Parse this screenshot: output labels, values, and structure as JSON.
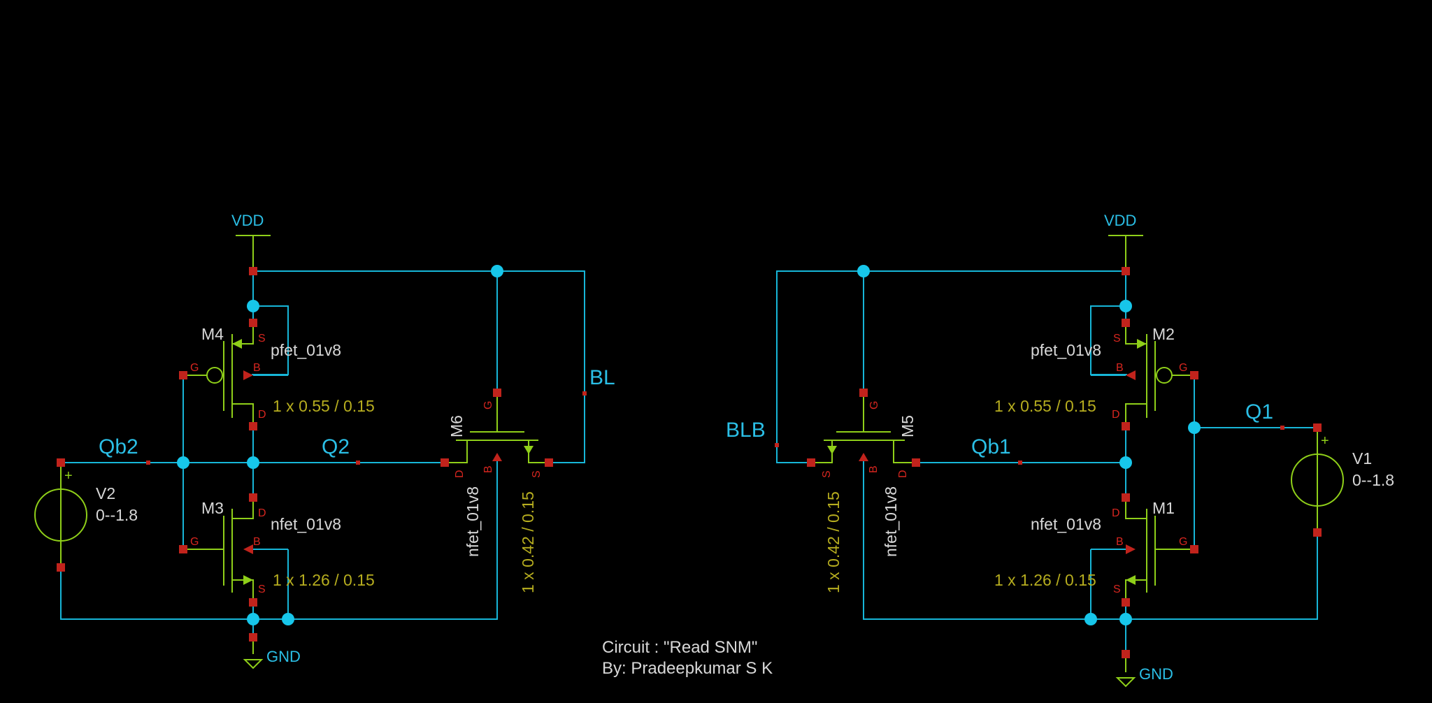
{
  "colors": {
    "background": "#000000",
    "wire": "#17b6d8",
    "component": "#8fcf19",
    "pin": "#c1231c",
    "net_label": "#2bbfe6",
    "instance_label": "#d8d8d8",
    "size_label": "#b6ad1f"
  },
  "net_labels": {
    "vdd_left": "VDD",
    "vdd_right": "VDD",
    "gnd_left": "GND",
    "gnd_right": "GND",
    "qb2": "Qb2",
    "q2": "Q2",
    "bl": "BL",
    "blb": "BLB",
    "qb1": "Qb1",
    "q1": "Q1"
  },
  "components": {
    "m4": {
      "name": "M4",
      "model": "pfet_01v8",
      "size": "1 x 0.55 / 0.15"
    },
    "m3": {
      "name": "M3",
      "model": "nfet_01v8",
      "size": "1 x 1.26 / 0.15"
    },
    "m6": {
      "name": "M6",
      "model": "nfet_01v8",
      "size": "1 x 0.42 / 0.15"
    },
    "m2": {
      "name": "M2",
      "model": "pfet_01v8",
      "size": "1 x 0.55 / 0.15"
    },
    "m1": {
      "name": "M1",
      "model": "nfet_01v8",
      "size": "1 x 1.26 / 0.15"
    },
    "m5": {
      "name": "M5",
      "model": "nfet_01v8",
      "size": "1 x 0.42 / 0.15"
    },
    "v2": {
      "name": "V2",
      "value": "0--1.8"
    },
    "v1": {
      "name": "V1",
      "value": "0--1.8"
    }
  },
  "pin_letters": {
    "s": "S",
    "g": "G",
    "d": "D",
    "b": "B",
    "plus": "+"
  },
  "footer": {
    "circuit": "Circuit : \"Read SNM\"",
    "author": "By: Pradeepkumar S K"
  }
}
